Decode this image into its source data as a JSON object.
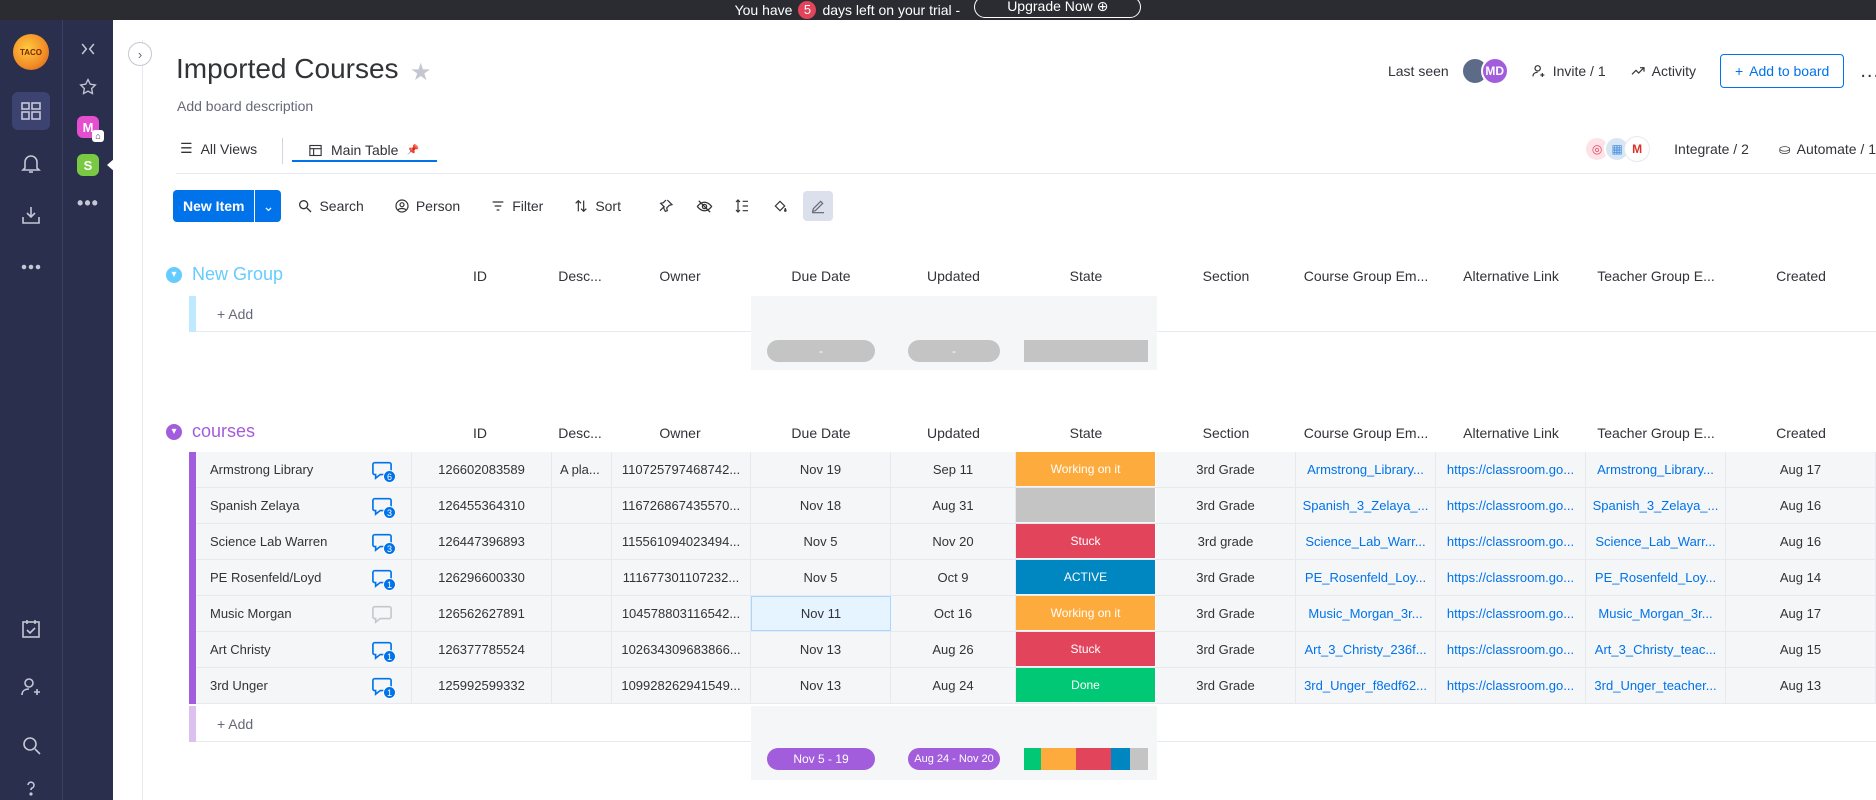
{
  "banner": {
    "prefix": "You have",
    "days": "5",
    "suffix": "days left on your trial -",
    "upgrade": "Upgrade Now ⊕"
  },
  "nav": {
    "logo_text": "TACO"
  },
  "board": {
    "title": "Imported Courses",
    "description": "Add board description",
    "last_seen": "Last seen",
    "avatar_initials": "MD",
    "invite": "Invite / 1",
    "activity": "Activity",
    "add_to_board": "Add to board",
    "more": "..."
  },
  "views": {
    "all_views": "All Views",
    "main_table": "Main Table",
    "integrate": "Integrate / 2",
    "automate": "Automate / 1"
  },
  "toolbar": {
    "new_item": "New Item",
    "search": "Search",
    "person": "Person",
    "filter": "Filter",
    "sort": "Sort"
  },
  "columns": [
    "ID",
    "Desc...",
    "Owner",
    "Due Date",
    "Updated",
    "State",
    "Section",
    "Course Group Em...",
    "Alternative Link",
    "Teacher Group E...",
    "Created"
  ],
  "group1": {
    "name": "New Group",
    "color": "#66ccff",
    "add": "+ Add",
    "due_summary": "-",
    "updated_summary": "-"
  },
  "group2": {
    "name": "courses",
    "color": "#a25ddc",
    "add": "+ Add",
    "due_summary": "Nov 5 - 19",
    "updated_summary": "Aug 24 - Nov 20",
    "rows": [
      {
        "name": "Armstrong Library",
        "updates": "6",
        "id": "126602083589",
        "desc": "A pla...",
        "owner": "110725797468742...",
        "due": "Nov 19",
        "updated": "Sep 11",
        "state": "Working on it",
        "state_color": "#fdab3d",
        "section": "3rd Grade",
        "course_email": "Armstrong_Library...",
        "alt_link": "https://classroom.go...",
        "teacher_email": "Armstrong_Library...",
        "created": "Aug 17"
      },
      {
        "name": "Spanish Zelaya",
        "updates": "3",
        "id": "126455364310",
        "desc": "",
        "owner": "116726867435570...",
        "due": "Nov 18",
        "updated": "Aug 31",
        "state": "",
        "state_color": "#c4c4c4",
        "section": "3rd Grade",
        "course_email": "Spanish_3_Zelaya_...",
        "alt_link": "https://classroom.go...",
        "teacher_email": "Spanish_3_Zelaya_...",
        "created": "Aug 16"
      },
      {
        "name": "Science Lab Warren",
        "updates": "3",
        "id": "126447396893",
        "desc": "",
        "owner": "115561094023494...",
        "due": "Nov 5",
        "updated": "Nov 20",
        "state": "Stuck",
        "state_color": "#e2445c",
        "section": "3rd grade",
        "course_email": "Science_Lab_Warr...",
        "alt_link": "https://classroom.go...",
        "teacher_email": "Science_Lab_Warr...",
        "created": "Aug 16"
      },
      {
        "name": "PE Rosenfeld/Loyd",
        "updates": "1",
        "id": "126296600330",
        "desc": "",
        "owner": "111677301107232...",
        "due": "Nov 5",
        "updated": "Oct 9",
        "state": "ACTIVE",
        "state_color": "#0086c0",
        "section": "3rd Grade",
        "course_email": "PE_Rosenfeld_Loy...",
        "alt_link": "https://classroom.go...",
        "teacher_email": "PE_Rosenfeld_Loy...",
        "created": "Aug 14"
      },
      {
        "name": "Music Morgan",
        "updates": "",
        "id": "126562627891",
        "desc": "",
        "owner": "104578803116542...",
        "due": "Nov 11",
        "updated": "Oct 16",
        "state": "Working on it",
        "state_color": "#fdab3d",
        "section": "3rd Grade",
        "course_email": "Music_Morgan_3r...",
        "alt_link": "https://classroom.go...",
        "teacher_email": "Music_Morgan_3r...",
        "created": "Aug 17"
      },
      {
        "name": "Art Christy",
        "updates": "1",
        "id": "126377785524",
        "desc": "",
        "owner": "102634309683866...",
        "due": "Nov 13",
        "updated": "Aug 26",
        "state": "Stuck",
        "state_color": "#e2445c",
        "section": "3rd Grade",
        "course_email": "Art_3_Christy_236f...",
        "alt_link": "https://classroom.go...",
        "teacher_email": "Art_3_Christy_teac...",
        "created": "Aug 15"
      },
      {
        "name": "3rd Unger",
        "updates": "1",
        "id": "125992599332",
        "desc": "",
        "owner": "109928262941549...",
        "due": "Nov 13",
        "updated": "Aug 24",
        "state": "Done",
        "state_color": "#00c875",
        "section": "3rd Grade",
        "course_email": "3rd_Unger_f8edf62...",
        "alt_link": "https://classroom.go...",
        "teacher_email": "3rd_Unger_teacher...",
        "created": "Aug 13"
      }
    ]
  }
}
